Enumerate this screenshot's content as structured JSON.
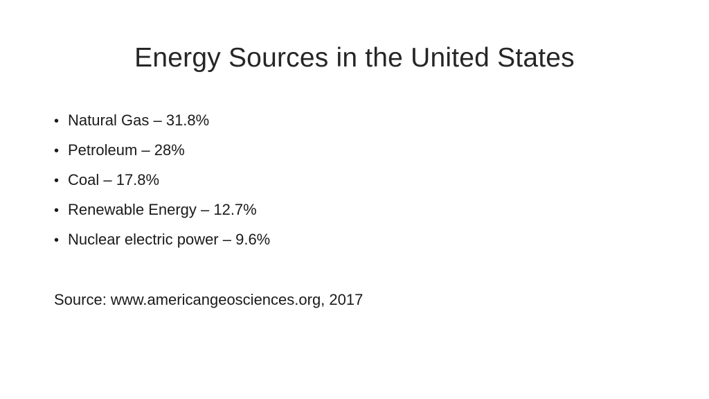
{
  "slide": {
    "title": "Energy Sources in the United States",
    "bullets": [
      "Natural Gas – 31.8%",
      "Petroleum – 28%",
      "Coal – 17.8%",
      "Renewable Energy – 12.7%",
      "Nuclear electric power – 9.6%"
    ],
    "bullet_glyph": "•",
    "source": "Source: www.americangeosciences.org, 2017"
  },
  "colors": {
    "background": "#ffffff",
    "text": "#1a1a1a"
  }
}
